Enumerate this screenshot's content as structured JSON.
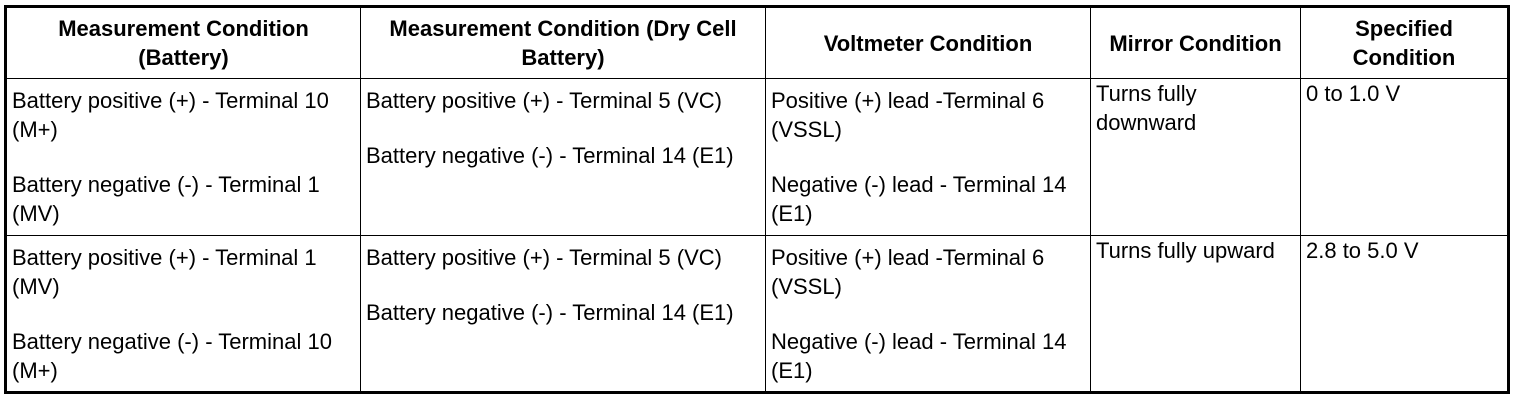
{
  "table": {
    "headers": [
      "Measurement Condition (Battery)",
      "Measurement Condition (Dry Cell Battery)",
      "Voltmeter Condition",
      "Mirror Condition",
      "Specified Condition"
    ],
    "rows": [
      {
        "battery": [
          "Battery positive (+) - Terminal 10 (M+)",
          "Battery negative (-) - Terminal 1 (MV)"
        ],
        "dry_cell": [
          "Battery positive (+) - Terminal 5 (VC)",
          "Battery negative (-) - Terminal 14 (E1)"
        ],
        "voltmeter": [
          "Positive (+) lead -Terminal 6 (VSSL)",
          "Negative (-) lead - Terminal 14 (E1)"
        ],
        "mirror": "Turns fully downward",
        "specified": "0 to 1.0 V"
      },
      {
        "battery": [
          "Battery positive (+) - Terminal 1 (MV)",
          "Battery negative (-) - Terminal 10 (M+)"
        ],
        "dry_cell": [
          "Battery positive (+) - Terminal 5 (VC)",
          "Battery negative (-) - Terminal 14 (E1)"
        ],
        "voltmeter": [
          "Positive (+) lead -Terminal 6 (VSSL)",
          "Negative (-) lead - Terminal 14 (E1)"
        ],
        "mirror": "Turns fully upward",
        "specified": "2.8 to 5.0 V"
      }
    ]
  }
}
